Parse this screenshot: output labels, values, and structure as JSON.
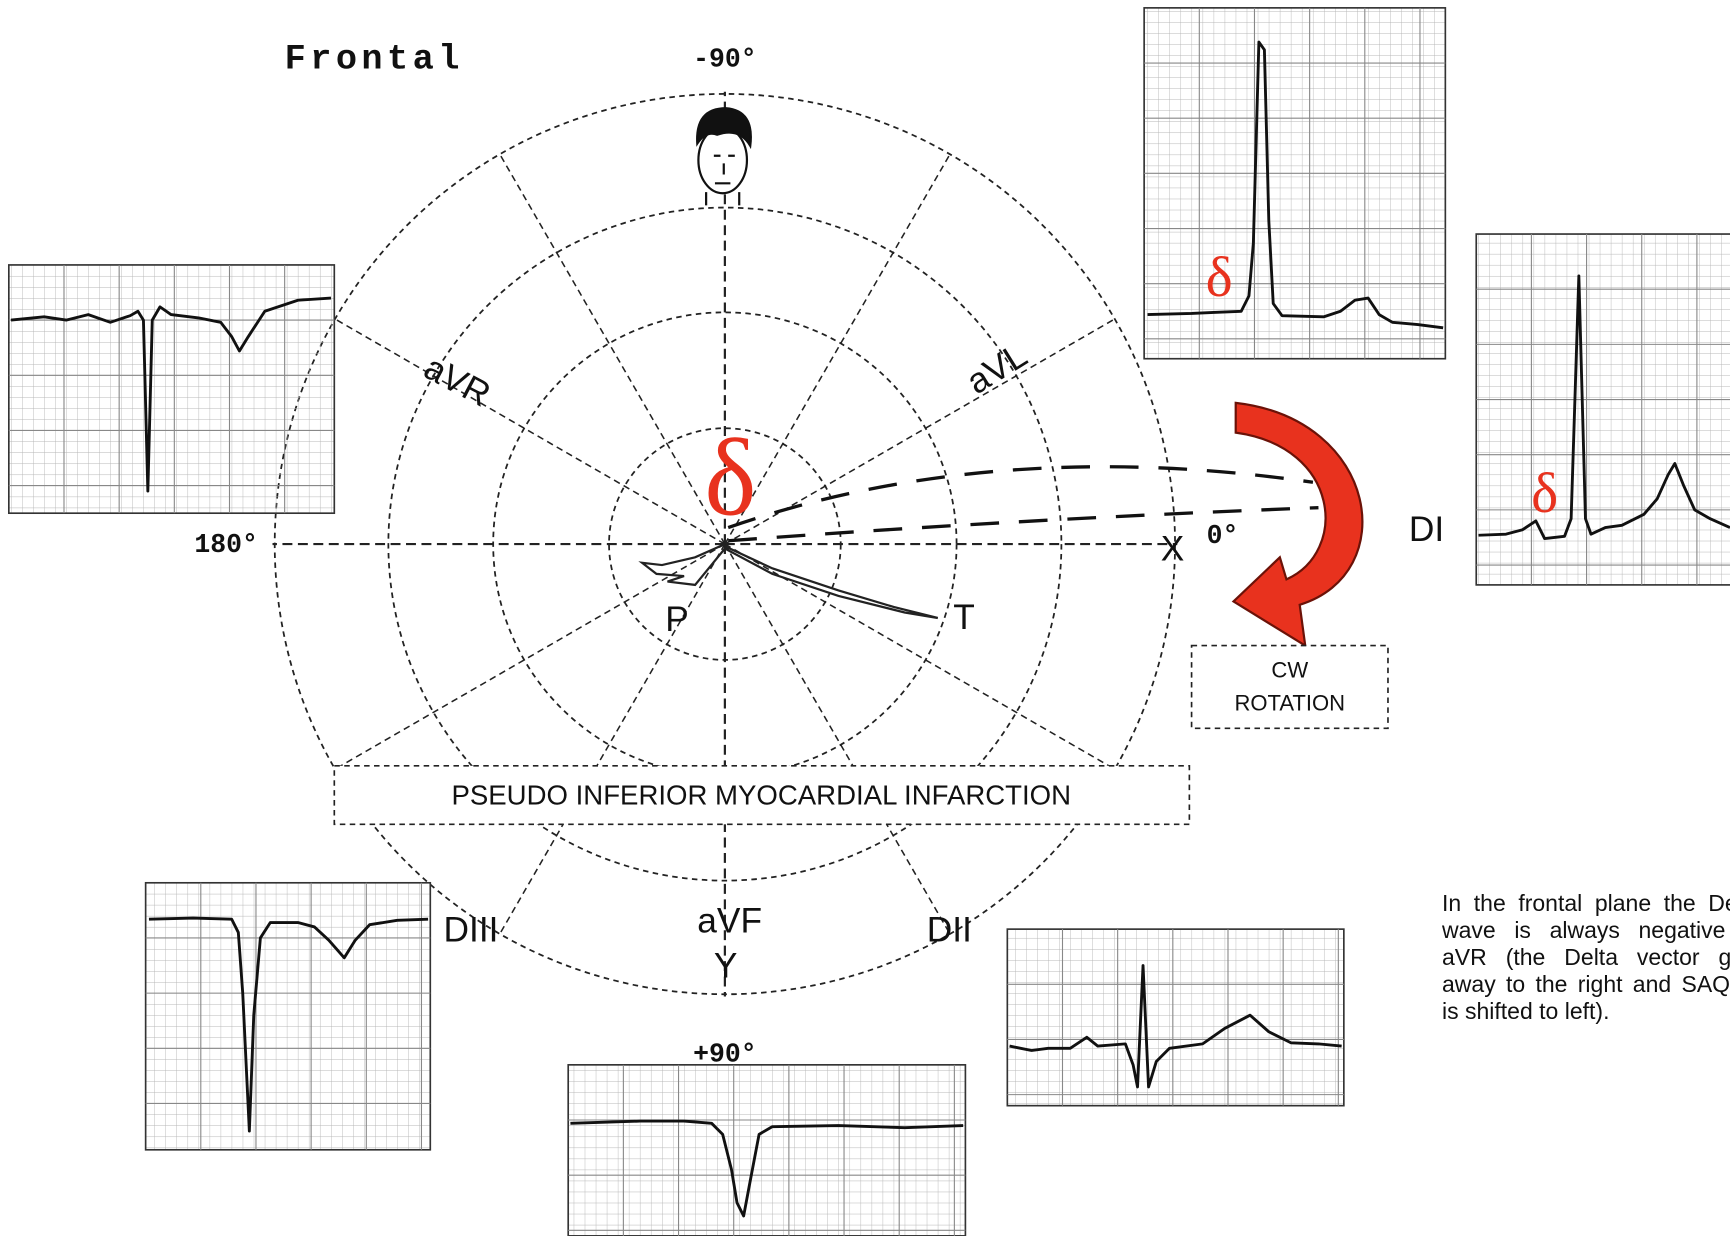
{
  "title": "Frontal",
  "angles": {
    "top": "-90°",
    "left": "180°",
    "right": "0°",
    "bottom": "+90°"
  },
  "leads": {
    "avr": "aVR",
    "avl": "aVL",
    "avf": "aVF",
    "di": "DI",
    "dii": "DII",
    "diii": "DIII"
  },
  "axes": {
    "x": "X",
    "y": "Y"
  },
  "loop_labels": {
    "p": "P",
    "t": "T"
  },
  "delta_labels": [
    "δ",
    "δ",
    "δ"
  ],
  "rotation_box": [
    "CW",
    "ROTATION"
  ],
  "diagnosis": "PSEUDO INFERIOR MYOCARDIAL INFARCTION",
  "note": "In the frontal plane the Delta wave is always negative in aVR (the Delta vector gets away to the right and SAQRS is shifted to left)."
}
